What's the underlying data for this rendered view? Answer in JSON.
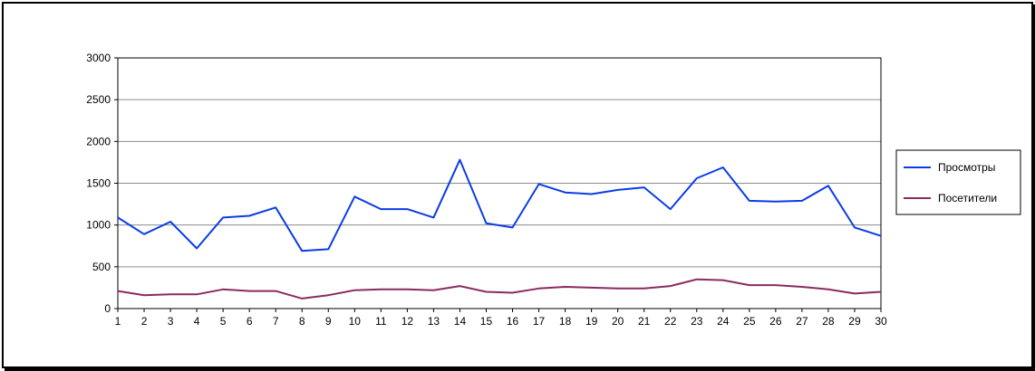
{
  "chart_data": {
    "type": "line",
    "title": "",
    "xlabel": "",
    "ylabel": "",
    "x": [
      1,
      2,
      3,
      4,
      5,
      6,
      7,
      8,
      9,
      10,
      11,
      12,
      13,
      14,
      15,
      16,
      17,
      18,
      19,
      20,
      21,
      22,
      23,
      24,
      25,
      26,
      27,
      28,
      29,
      30
    ],
    "ylim": [
      0,
      3000
    ],
    "yticks": [
      0,
      500,
      1000,
      1500,
      2000,
      2500,
      3000
    ],
    "grid": true,
    "legend_position": "right",
    "series": [
      {
        "name": "Просмотры",
        "color": "#0a3ce6",
        "values": [
          1090,
          890,
          1040,
          720,
          1090,
          1110,
          1210,
          690,
          710,
          1340,
          1190,
          1190,
          1090,
          1780,
          1020,
          970,
          1490,
          1390,
          1370,
          1420,
          1450,
          1190,
          1560,
          1690,
          1290,
          1280,
          1290,
          1470,
          970,
          870
        ]
      },
      {
        "name": "Посетители",
        "color": "#8b2a62",
        "values": [
          210,
          160,
          170,
          170,
          230,
          210,
          210,
          120,
          160,
          220,
          230,
          230,
          220,
          270,
          200,
          190,
          240,
          260,
          250,
          240,
          240,
          270,
          350,
          340,
          280,
          280,
          260,
          230,
          180,
          200
        ]
      }
    ]
  }
}
